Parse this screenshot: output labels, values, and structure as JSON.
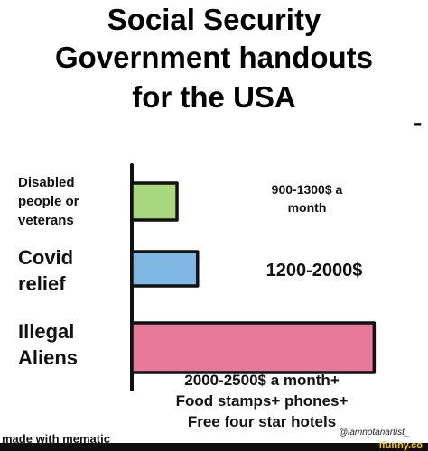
{
  "title_lines": [
    "Social Security",
    "Government handouts",
    "for the USA"
  ],
  "stray_mark": "-",
  "chart_data": {
    "type": "bar",
    "orientation": "horizontal",
    "categories": [
      "Disabled people or veterans",
      "Covid relief",
      "Illegal Aliens"
    ],
    "category_lines": [
      [
        "Disabled",
        "people or",
        "veterans"
      ],
      [
        "Covid",
        "relief"
      ],
      [
        "Illegal",
        "Aliens"
      ]
    ],
    "values": [
      1100,
      1600,
      5900
    ],
    "value_labels": [
      [
        "900-1300$ a",
        "month"
      ],
      [
        "1200-2000$"
      ],
      [
        "2000-2500$ a month+",
        "Food stamps+ phones+",
        "Free four star hotels"
      ]
    ],
    "colors": [
      "#a8d77f",
      "#7fb6e2",
      "#e8799b"
    ],
    "xlim": [
      0,
      6200
    ],
    "grid": false,
    "legend": "none"
  },
  "footer": {
    "watermark": "made with mematic",
    "artist": "@iamnotanartist_",
    "site": "ifunny.co"
  }
}
